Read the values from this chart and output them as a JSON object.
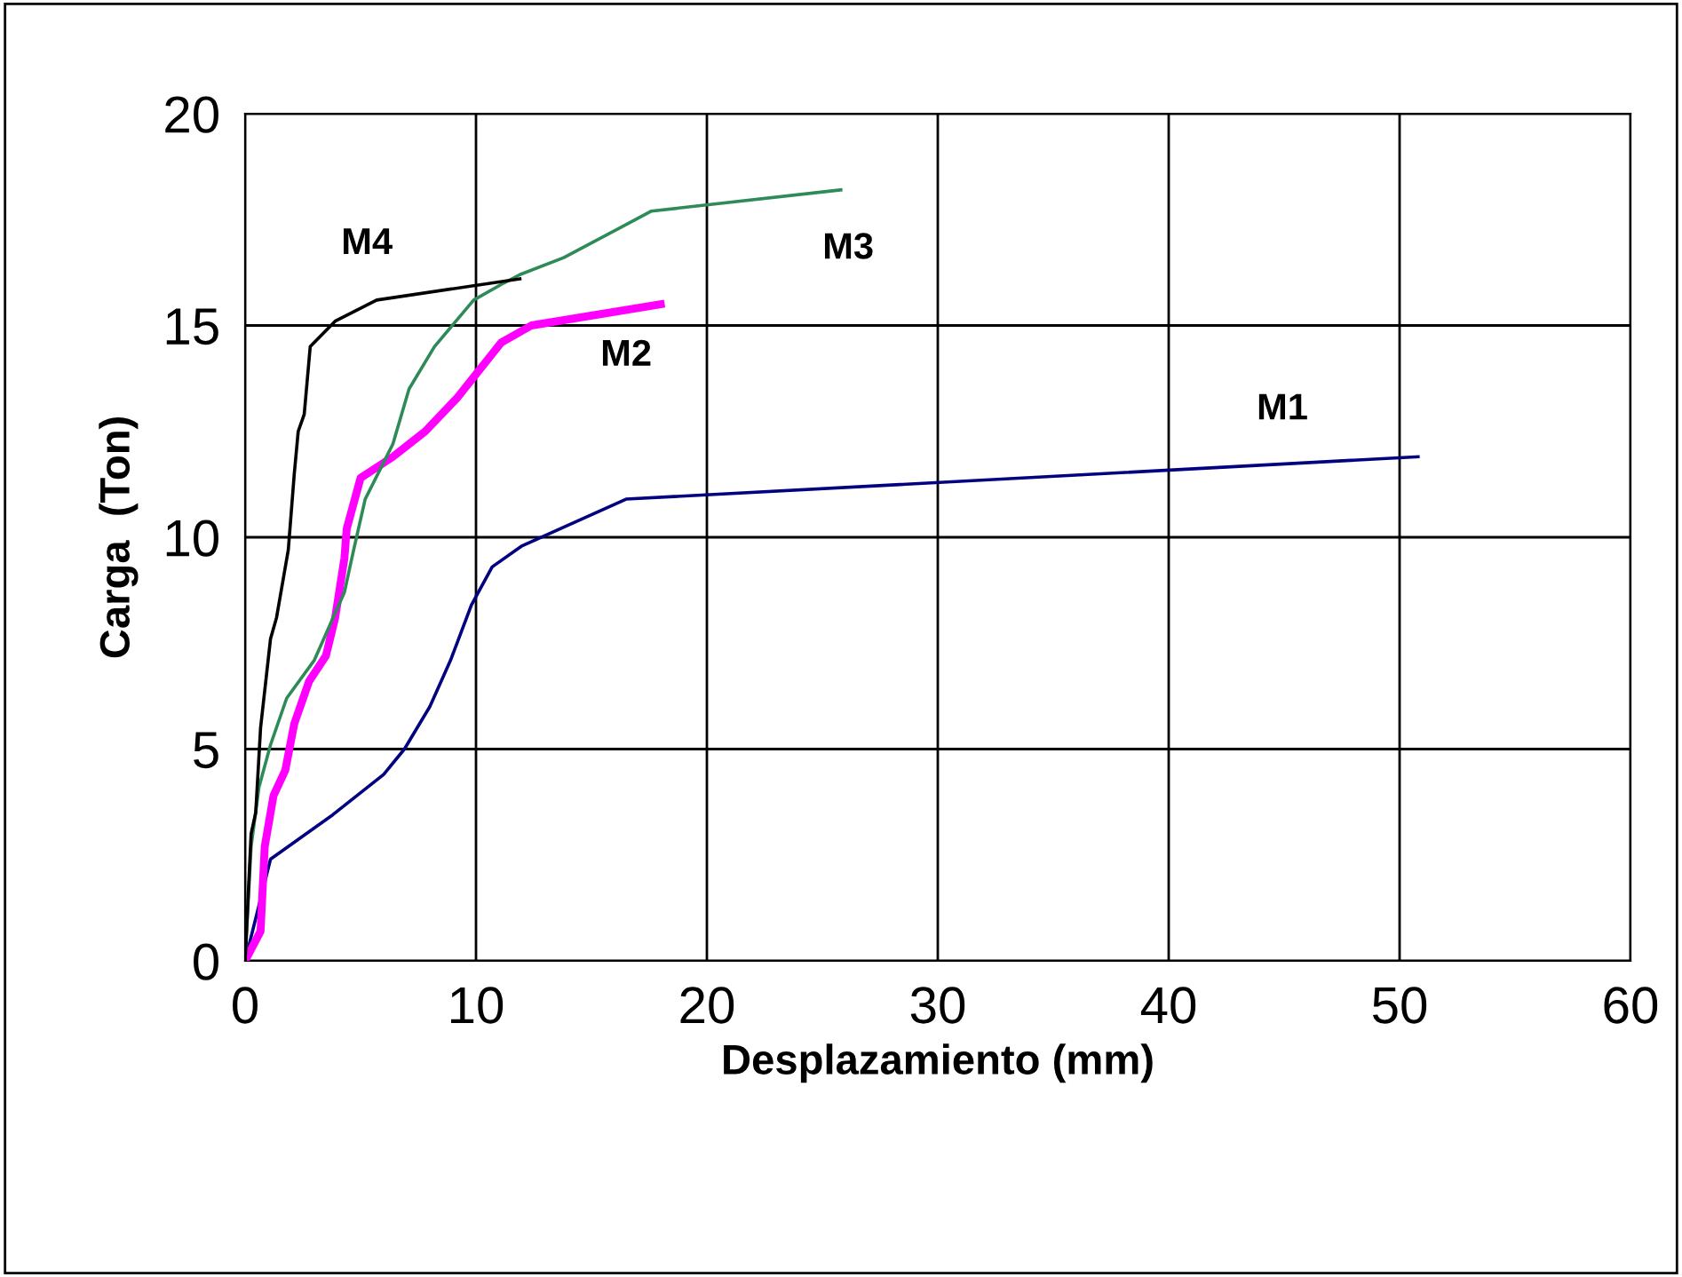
{
  "chart_data": {
    "type": "line",
    "xlabel": "Desplazamiento (mm)",
    "ylabel": "Carga  (Ton)",
    "xlim": [
      0,
      60
    ],
    "ylim": [
      0,
      20
    ],
    "xticks": [
      0,
      10,
      20,
      30,
      40,
      50,
      60
    ],
    "yticks": [
      0,
      5,
      10,
      15,
      20
    ],
    "grid": true,
    "legend": false,
    "marker": "none",
    "line_style": "solid",
    "series": [
      {
        "name": "M1",
        "color": "#000080",
        "x": [
          0,
          1.1,
          3.8,
          6.0,
          6.9,
          8.0,
          8.9,
          9.8,
          10.7,
          12.0,
          16.5,
          50.8
        ],
        "values": [
          0,
          2.4,
          3.45,
          4.4,
          5.0,
          6.0,
          7.1,
          8.4,
          9.3,
          9.8,
          10.9,
          11.9
        ]
      },
      {
        "name": "M2",
        "color": "#ff00ff",
        "x": [
          0,
          0.67,
          0.85,
          1.23,
          1.74,
          2.13,
          2.77,
          3.5,
          3.9,
          4.3,
          4.4,
          5.0,
          6.4,
          7.8,
          9.2,
          11.1,
          12.4,
          18.0
        ],
        "values": [
          0,
          0.7,
          2.7,
          3.9,
          4.5,
          5.6,
          6.6,
          7.2,
          8.1,
          9.5,
          10.2,
          11.4,
          11.9,
          12.5,
          13.3,
          14.6,
          15.0,
          15.5
        ]
      },
      {
        "name": "M3",
        "color": "#2e8b57",
        "x": [
          0,
          0.26,
          0.6,
          1.1,
          1.8,
          3.0,
          4.3,
          4.7,
          5.2,
          6.4,
          7.1,
          8.2,
          9.9,
          11.2,
          11.9,
          13.8,
          17.6,
          25.8
        ],
        "values": [
          0,
          2.7,
          4.1,
          5.1,
          6.2,
          7.1,
          8.7,
          9.7,
          10.9,
          12.2,
          13.5,
          14.5,
          15.6,
          16.0,
          16.2,
          16.6,
          17.7,
          18.2
        ]
      },
      {
        "name": "M4",
        "color": "#000000",
        "x": [
          0,
          0.26,
          0.46,
          0.67,
          1.1,
          1.36,
          1.87,
          2.13,
          2.3,
          2.56,
          2.82,
          3.9,
          5.7,
          11.9
        ],
        "values": [
          0,
          3.0,
          3.5,
          5.5,
          7.6,
          8.1,
          9.7,
          11.5,
          12.5,
          12.9,
          14.5,
          15.1,
          15.6,
          16.1
        ]
      }
    ]
  }
}
